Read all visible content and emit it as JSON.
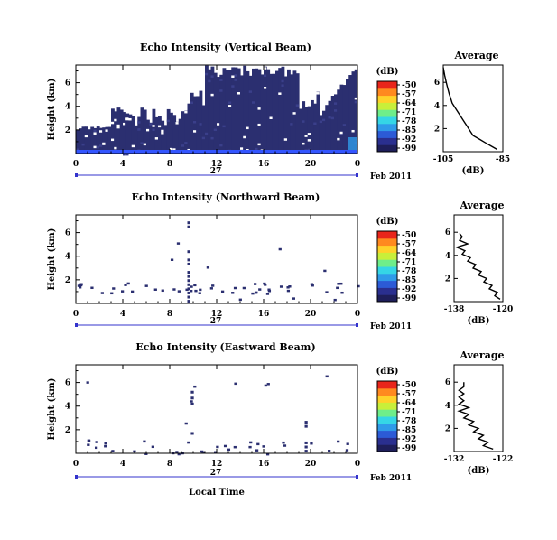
{
  "chart_data": [
    {
      "type": "heatmap",
      "title": "Echo Intensity (Vertical Beam)",
      "ylabel": "Height (km)",
      "y_ticks": [
        "2",
        "4",
        "6"
      ],
      "x_ticks": [
        "0",
        "4",
        "8",
        "12",
        "16",
        "20",
        "0"
      ],
      "xlim": [
        0,
        24
      ],
      "ylim": [
        0,
        7.5
      ],
      "date_day": "27",
      "date_month": "Feb 2011",
      "colorbar_unit": "(dB)",
      "colorbar_ticks": [
        "-50",
        "-57",
        "-64",
        "-71",
        "-78",
        "-85",
        "-92",
        "-99"
      ],
      "average": {
        "title": "Average",
        "xlabel": "(dB)",
        "x_ticks": [
          "-105",
          "-85"
        ],
        "y_ticks": [
          "2",
          "4",
          "6"
        ],
        "x": [
          -105,
          -85
        ],
        "ylim": [
          0,
          7.5
        ],
        "profile": [
          [
            -87,
            0.2
          ],
          [
            -89,
            0.5
          ],
          [
            -91,
            0.8
          ],
          [
            -93,
            1.1
          ],
          [
            -95,
            1.4
          ],
          [
            -96,
            1.8
          ],
          [
            -97,
            2.2
          ],
          [
            -98,
            2.6
          ],
          [
            -99,
            3.0
          ],
          [
            -100,
            3.4
          ],
          [
            -101,
            3.8
          ],
          [
            -102,
            4.2
          ],
          [
            -102.5,
            4.6
          ],
          [
            -103,
            5.0
          ],
          [
            -103.5,
            5.5
          ],
          [
            -104,
            6.0
          ],
          [
            -104.5,
            6.6
          ],
          [
            -105,
            7.3
          ]
        ]
      }
    },
    {
      "type": "heatmap",
      "title": "Echo Intensity (Northward Beam)",
      "ylabel": "Height (km)",
      "y_ticks": [
        "2",
        "4",
        "6"
      ],
      "x_ticks": [
        "0",
        "4",
        "8",
        "12",
        "16",
        "20",
        "0"
      ],
      "xlim": [
        0,
        24
      ],
      "ylim": [
        0,
        7.5
      ],
      "date_day": "27",
      "date_month": "Feb 2011",
      "colorbar_unit": "(dB)",
      "colorbar_ticks": [
        "-50",
        "-57",
        "-64",
        "-71",
        "-78",
        "-85",
        "-92",
        "-99"
      ],
      "average": {
        "title": "Average",
        "xlabel": "(dB)",
        "x_ticks": [
          "-138",
          "-120"
        ],
        "y_ticks": [
          "2",
          "4",
          "6"
        ],
        "x": [
          -138,
          -120
        ],
        "ylim": [
          0,
          7.5
        ],
        "profile": [
          [
            -121,
            0.2
          ],
          [
            -123,
            0.5
          ],
          [
            -122,
            0.8
          ],
          [
            -125,
            1.1
          ],
          [
            -124,
            1.4
          ],
          [
            -127,
            1.7
          ],
          [
            -126,
            2.0
          ],
          [
            -129,
            2.3
          ],
          [
            -128,
            2.6
          ],
          [
            -131,
            2.9
          ],
          [
            -130,
            3.2
          ],
          [
            -133,
            3.5
          ],
          [
            -132,
            3.8
          ],
          [
            -135,
            4.1
          ],
          [
            -134,
            4.4
          ],
          [
            -137,
            4.7
          ],
          [
            -133,
            5.0
          ],
          [
            -136,
            5.3
          ],
          [
            -135,
            5.6
          ],
          [
            -136,
            5.9
          ]
        ]
      }
    },
    {
      "type": "heatmap",
      "title": "Echo Intensity (Eastward Beam)",
      "ylabel": "Height (km)",
      "y_ticks": [
        "2",
        "4",
        "6"
      ],
      "x_ticks": [
        "0",
        "4",
        "8",
        "12",
        "16",
        "20",
        "0"
      ],
      "xlim": [
        0,
        24
      ],
      "ylim": [
        0,
        7.5
      ],
      "date_day": "27",
      "date_month": "Feb 2011",
      "colorbar_unit": "(dB)",
      "colorbar_ticks": [
        "-50",
        "-57",
        "-64",
        "-71",
        "-78",
        "-85",
        "-92",
        "-99"
      ],
      "average": {
        "title": "Average",
        "xlabel": "(dB)",
        "x_ticks": [
          "-132",
          "-122"
        ],
        "y_ticks": [
          "2",
          "4",
          "6"
        ],
        "x": [
          -132,
          -122
        ],
        "ylim": [
          0,
          7.5
        ],
        "profile": [
          [
            -124,
            0.2
          ],
          [
            -126,
            0.5
          ],
          [
            -125,
            0.8
          ],
          [
            -127,
            1.1
          ],
          [
            -126,
            1.4
          ],
          [
            -128,
            1.7
          ],
          [
            -127,
            2.0
          ],
          [
            -129,
            2.3
          ],
          [
            -128,
            2.6
          ],
          [
            -130,
            2.9
          ],
          [
            -129,
            3.2
          ],
          [
            -131,
            3.5
          ],
          [
            -129,
            3.8
          ],
          [
            -131,
            4.1
          ],
          [
            -130,
            4.4
          ],
          [
            -131,
            4.7
          ],
          [
            -130,
            5.0
          ],
          [
            -131,
            5.3
          ],
          [
            -130,
            5.6
          ],
          [
            -130,
            6.0
          ]
        ]
      }
    }
  ],
  "shared_xlabel": "Local Time",
  "colors": {
    "noise_fill": "#2b2f70",
    "noise_speck": "#3a3f8a",
    "surface_blue": "#3355ff",
    "axis": "#000000",
    "date_bar": "#3333cc"
  },
  "colormap": [
    "#1e1e5a",
    "#2a2f8f",
    "#2c5bd6",
    "#2f9be9",
    "#35d6e6",
    "#6fee8a",
    "#c8ef3a",
    "#ffd22a",
    "#ff8a1f",
    "#e8251b"
  ]
}
